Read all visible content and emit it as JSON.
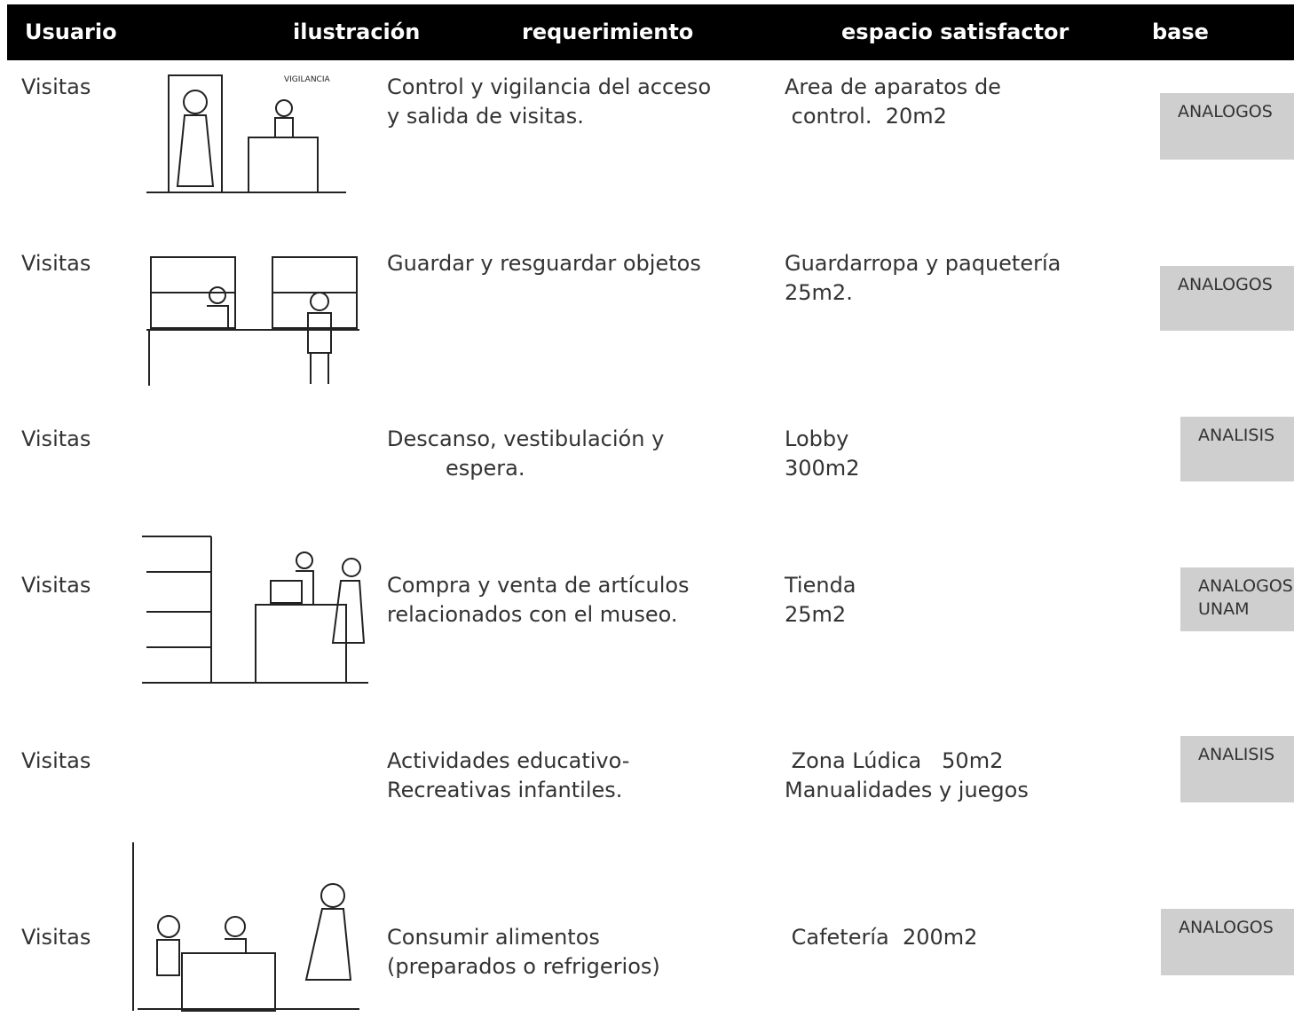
{
  "header": {
    "columns": [
      "Usuario",
      "ilustración",
      "requerimiento",
      "espacio satisfactor",
      "base"
    ]
  },
  "illustration_label": "VIGILANCIA",
  "rows": [
    {
      "usuario": "Visitas",
      "requerimiento": [
        "Control y vigilancia del acceso",
        "y salida de visitas."
      ],
      "espacio": [
        "Area de aparatos de",
        " control.  20m2"
      ],
      "base": [
        "ANALOGOS"
      ]
    },
    {
      "usuario": "Visitas",
      "requerimiento": [
        "Guardar y resguardar objetos"
      ],
      "espacio": [
        "Guardarropa y paquetería",
        "25m2."
      ],
      "base": [
        "ANALOGOS"
      ]
    },
    {
      "usuario": "Visitas",
      "requerimiento": [
        "Descanso, vestibulación y",
        "espera."
      ],
      "espacio": [
        "Lobby",
        "300m2"
      ],
      "base": [
        "ANALISIS"
      ]
    },
    {
      "usuario": "Visitas",
      "requerimiento": [
        "Compra y venta de artículos",
        "relacionados con el museo."
      ],
      "espacio": [
        "Tienda",
        "25m2"
      ],
      "base": [
        "ANALOGOS",
        "UNAM"
      ]
    },
    {
      "usuario": "Visitas",
      "requerimiento": [
        "Actividades educativo-",
        "Recreativas infantiles."
      ],
      "espacio": [
        " Zona Lúdica   50m2",
        "Manualidades y juegos"
      ],
      "base": [
        "ANALISIS"
      ]
    },
    {
      "usuario": "Visitas",
      "requerimiento": [
        "Consumir alimentos",
        "(preparados o refrigerios)"
      ],
      "espacio": [
        " Cafetería  200m2"
      ],
      "base": [
        "ANALOGOS"
      ]
    }
  ]
}
